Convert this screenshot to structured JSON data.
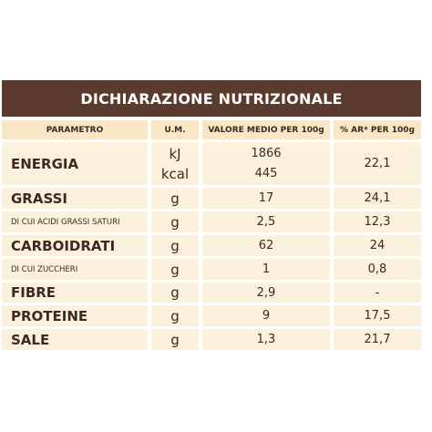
{
  "title": "DICHIARAZIONE NUTRIZIONALE",
  "table": {
    "header": [
      "PARAMETRO",
      "U.M.",
      "VALORE MEDIO PER 100g",
      "% AR* PER 100g"
    ],
    "rows": [
      [
        "ENERGIA",
        [
          "kJ",
          "kcal"
        ],
        [
          "1866",
          "445"
        ],
        "22,1"
      ],
      [
        "GRASSI",
        "g",
        "17",
        "24,1"
      ],
      [
        "DI CUI ACIDI GRASSI SATURI",
        "g",
        "2,5",
        "12,3"
      ],
      [
        "CARBOIDRATI",
        "g",
        "62",
        "24"
      ],
      [
        "DI CUI ZUCCHERI",
        "g",
        "1",
        "0,8"
      ],
      [
        "FIBRE",
        "g",
        "2,9",
        "-"
      ],
      [
        "PROTEINE",
        "g",
        "9",
        "17,5"
      ],
      [
        "SALE",
        "g",
        "1,3",
        "21,7"
      ]
    ]
  }
}
